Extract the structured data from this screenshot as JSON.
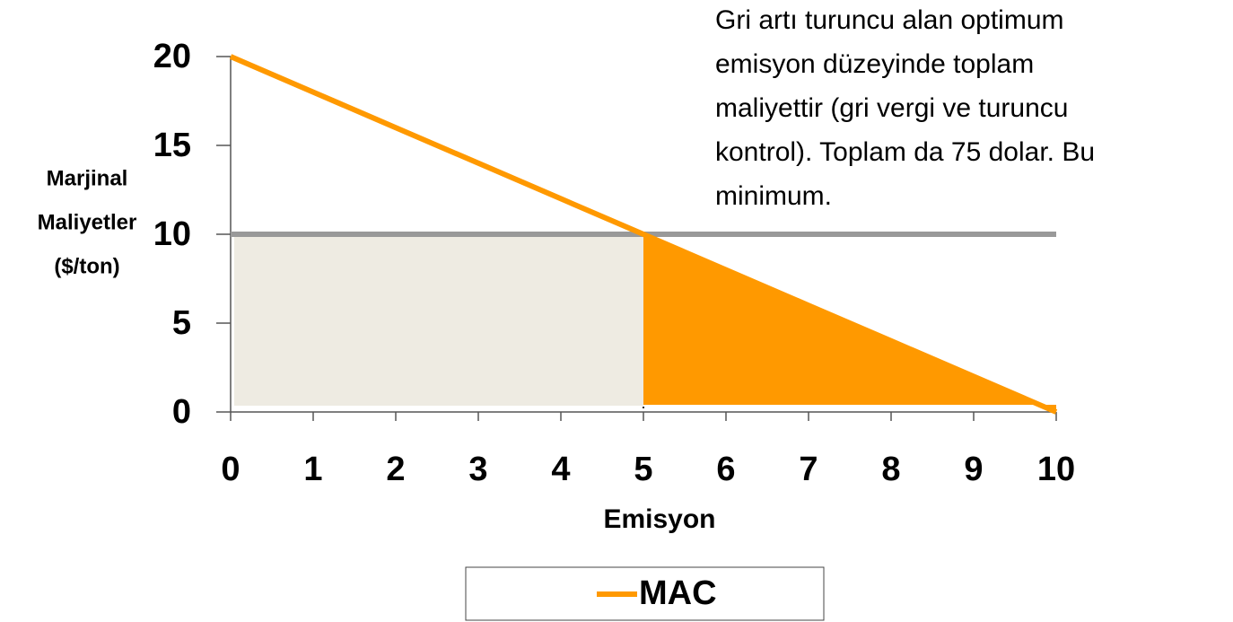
{
  "chart_data": {
    "type": "line",
    "x": [
      0,
      1,
      2,
      3,
      4,
      5,
      6,
      7,
      8,
      9,
      10
    ],
    "series": [
      {
        "name": "MAC",
        "color": "#ff9900",
        "values": [
          20,
          18,
          16,
          14,
          12,
          10,
          8,
          6,
          4,
          2,
          0
        ]
      }
    ],
    "tax_line": {
      "value": 10,
      "color": "#999999"
    },
    "optimum_x": 5,
    "tax_area_color": "#eeebe2",
    "control_area_color": "#ff9900",
    "xlabel": "Emisyon",
    "ylabel": [
      "Marjinal",
      "Maliyetler",
      "($/ton)"
    ],
    "annotation": [
      "Gri artı turuncu alan optimum",
      "emisyon düzeyinde toplam",
      "maliyettir (gri vergi ve turuncu",
      "kontrol). Toplam da 75 dolar. Bu",
      "minimum."
    ],
    "xlim": [
      0,
      10
    ],
    "ylim": [
      0,
      20
    ],
    "xticks": [
      0,
      1,
      2,
      3,
      4,
      5,
      6,
      7,
      8,
      9,
      10
    ],
    "yticks": [
      0,
      5,
      10,
      15,
      20
    ],
    "legend": "bottom"
  }
}
